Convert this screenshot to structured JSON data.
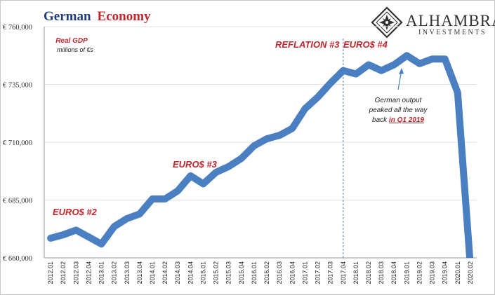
{
  "colors": {
    "series": "#4a7fc1",
    "title_primary": "#1f3d7a",
    "title_accent": "#c0272d",
    "annotation": "#c0272d",
    "grid": "#e2e2e2"
  },
  "title": {
    "part1": "German",
    "part2": "Economy"
  },
  "logo": {
    "name": "ALHAMBRA",
    "sub": "INVESTMENTS",
    "icon": "diamond-emblem-icon"
  },
  "series_label": {
    "name": "Real GDP",
    "unit": "millions of €s"
  },
  "annotations": {
    "euro2": "EURO$ #2",
    "euro3": "EURO$ #3",
    "reflation3": "REFLATION #3",
    "euro4": "EURO$ #4",
    "callout_line1": "German output",
    "callout_line2": "peaked all the way",
    "callout_line3_prefix": "back ",
    "callout_line3_link": "in Q1 2019"
  },
  "chart_data": {
    "type": "line",
    "title": "German Economy",
    "xlabel": "",
    "ylabel": "",
    "ylim": [
      660000,
      760000
    ],
    "yticks": [
      660000,
      685000,
      710000,
      735000,
      760000
    ],
    "ytick_labels": [
      "€ 660,000",
      "€ 685,000",
      "€ 710,000",
      "€ 735,000",
      "€ 760,000"
    ],
    "grid": true,
    "categories": [
      "2012.01",
      "2012.02",
      "2012.03",
      "2012.04",
      "2013.01",
      "2013.02",
      "2013.03",
      "2013.04",
      "2014.01",
      "2014.02",
      "2014.03",
      "2014.04",
      "2015.01",
      "2015.02",
      "2015.03",
      "2015.04",
      "2016.01",
      "2016.02",
      "2016.03",
      "2016.04",
      "2017.01",
      "2017.02",
      "2017.03",
      "2017.04",
      "2018.01",
      "2018.02",
      "2018.03",
      "2018.04",
      "2019.01",
      "2019.02",
      "2019.03",
      "2019.04",
      "2020.01",
      "2020.02"
    ],
    "series": [
      {
        "name": "Real GDP",
        "values": [
          668500,
          670000,
          672000,
          669000,
          666000,
          673500,
          677000,
          679000,
          685500,
          685500,
          689000,
          695500,
          692000,
          697000,
          699500,
          703000,
          708500,
          711500,
          713000,
          716000,
          724500,
          729500,
          735500,
          741000,
          739500,
          743500,
          741000,
          743500,
          747500,
          744000,
          746000,
          746000,
          731500,
          656500
        ]
      }
    ],
    "reference_line": {
      "x": "2017.04",
      "style": "dashed"
    },
    "annotations": [
      {
        "text": "EURO$ #2",
        "x": "2012.02",
        "y": 680000
      },
      {
        "text": "EURO$ #3",
        "x": "2014.03",
        "y": 700000
      },
      {
        "text": "REFLATION #3",
        "x": "2017.02",
        "y": 752000
      },
      {
        "text": "EURO$ #4",
        "x": "2018.02",
        "y": 752000
      },
      {
        "text": "German output peaked all the way back in Q1 2019",
        "x": "2019.01",
        "y": 722000
      }
    ]
  }
}
